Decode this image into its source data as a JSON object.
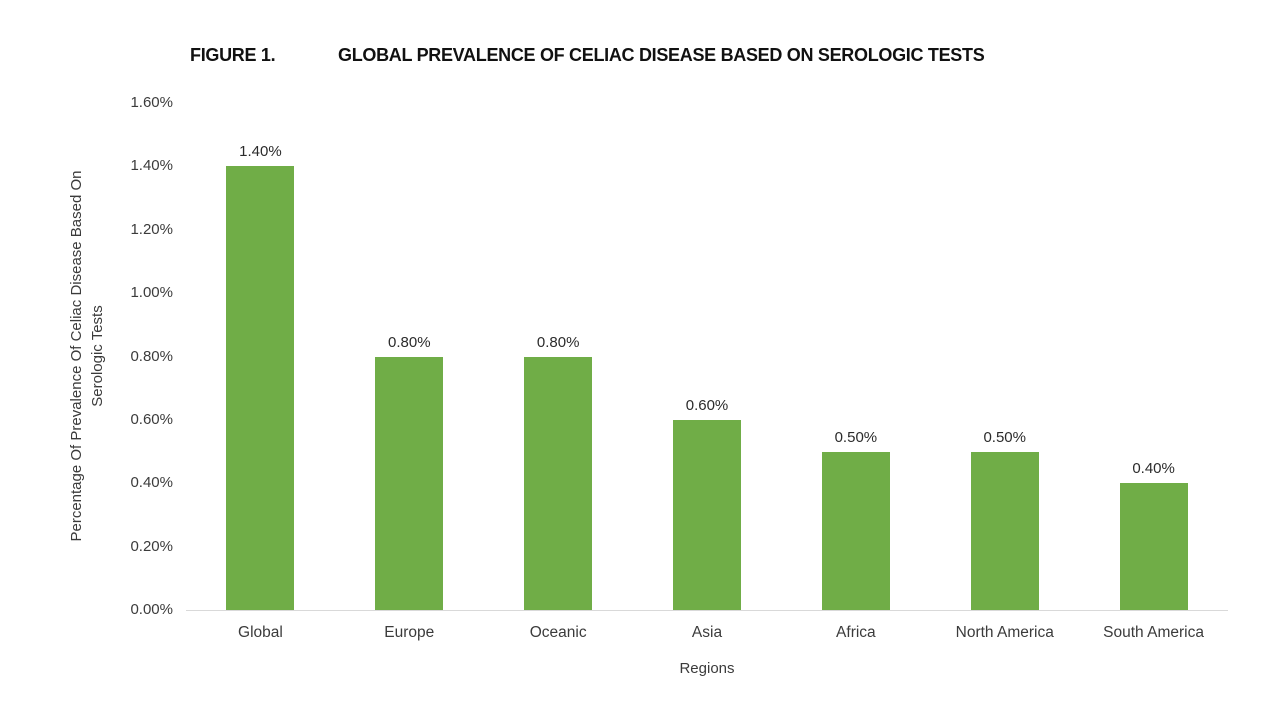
{
  "figure": {
    "label": "FIGURE 1.",
    "title": "GLOBAL PREVALENCE OF CELIAC DISEASE BASED ON SEROLOGIC TESTS"
  },
  "chart_data": {
    "type": "bar",
    "title": "GLOBAL PREVALENCE OF CELIAC DISEASE BASED ON SEROLOGIC TESTS",
    "categories": [
      "Global",
      "Europe",
      "Oceanic",
      "Asia",
      "Africa",
      "North America",
      "South America"
    ],
    "values": [
      1.4,
      0.8,
      0.8,
      0.6,
      0.5,
      0.5,
      0.4
    ],
    "data_labels": [
      "1.40%",
      "0.80%",
      "0.80%",
      "0.60%",
      "0.50%",
      "0.50%",
      "0.40%"
    ],
    "xlabel": "Regions",
    "ylabel": "Percentage Of Prevalence Of Celiac Disease Based On Serologic Tests",
    "ylabel_lines": [
      "Percentage Of Prevalence Of Celiac Disease Based On",
      "Serologic Tests"
    ],
    "yticks": [
      "0.00%",
      "0.20%",
      "0.40%",
      "0.60%",
      "0.80%",
      "1.00%",
      "1.20%",
      "1.40%",
      "1.60%"
    ],
    "ylim": [
      0,
      1.6
    ],
    "grid": false,
    "legend": "none",
    "bar_color": "#70AD47",
    "axis_line_color": "#D9D9D9"
  }
}
